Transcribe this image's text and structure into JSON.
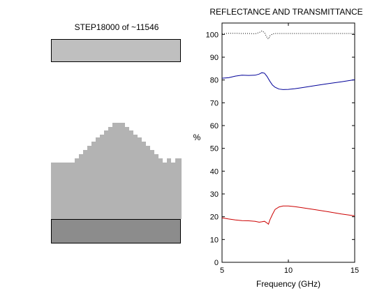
{
  "simulation": {
    "title": "STEP18000 of ~11546"
  },
  "colors": {
    "reflectance": "#cc0000",
    "transmittance": "#000099",
    "sum": "#000000",
    "top_slab": "#bfbfbf",
    "bottom_slab": "#8c8c8c",
    "field": "#b3b3b3"
  },
  "chart_data": {
    "type": "line",
    "title": "REFLECTANCE AND TRANSMITTANCE",
    "xlabel": "Frequency (GHz)",
    "ylabel": "%",
    "xlim": [
      5,
      15
    ],
    "ylim": [
      0,
      105
    ],
    "xticks": [
      5,
      10,
      15
    ],
    "yticks": [
      0,
      10,
      20,
      30,
      40,
      50,
      60,
      70,
      80,
      90,
      100
    ],
    "grid": false,
    "series": [
      {
        "style": "dotted",
        "color": "#000000",
        "x": [
          5,
          5.5,
          6,
          6.5,
          7,
          7.5,
          7.8,
          8.0,
          8.2,
          8.4,
          8.5,
          8.6,
          8.8,
          9.0,
          9.5,
          10,
          11,
          12,
          13,
          14,
          15
        ],
        "y": [
          100.3,
          100.5,
          100.5,
          100.4,
          100.4,
          100.3,
          100.8,
          101.5,
          100.8,
          98.5,
          98.0,
          99.3,
          100.2,
          100.4,
          100.4,
          100.4,
          100.4,
          100.4,
          100.4,
          100.4,
          100.4
        ]
      },
      {
        "style": "solid",
        "color": "#000099",
        "x": [
          5,
          5.5,
          6,
          6.5,
          7,
          7.5,
          7.8,
          8.0,
          8.2,
          8.4,
          8.6,
          8.8,
          9.0,
          9.3,
          9.6,
          10,
          10.5,
          11,
          12,
          13,
          14,
          15
        ],
        "y": [
          80.8,
          81.0,
          81.7,
          82.1,
          82.0,
          82.1,
          82.6,
          83.2,
          83.0,
          81.5,
          79.5,
          77.8,
          76.8,
          76.0,
          75.8,
          75.9,
          76.2,
          76.6,
          77.5,
          78.4,
          79.2,
          80.1
        ]
      },
      {
        "style": "solid",
        "color": "#cc0000",
        "x": [
          5,
          5.5,
          6,
          6.5,
          7,
          7.5,
          7.8,
          8.0,
          8.2,
          8.4,
          8.5,
          8.6,
          8.8,
          9.0,
          9.3,
          9.6,
          10,
          10.5,
          11,
          12,
          13,
          14,
          15
        ],
        "y": [
          19.5,
          19.0,
          18.6,
          18.3,
          18.2,
          18.0,
          17.6,
          17.8,
          18.0,
          17.2,
          16.7,
          18.5,
          21.0,
          23.2,
          24.3,
          24.7,
          24.7,
          24.4,
          24.0,
          23.1,
          22.2,
          21.2,
          20.4
        ]
      }
    ]
  }
}
